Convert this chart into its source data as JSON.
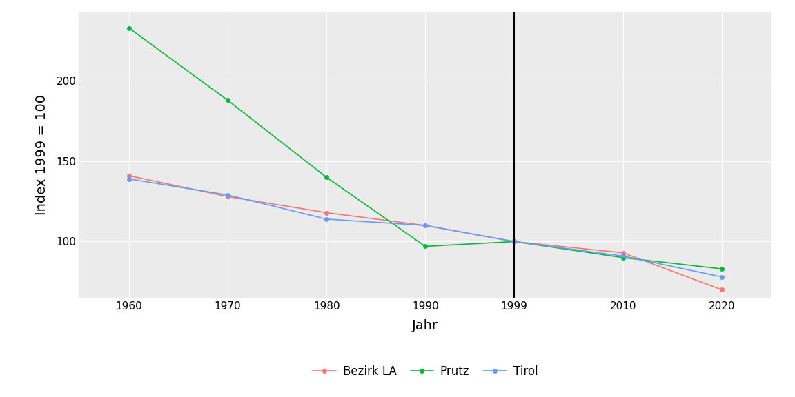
{
  "years": [
    1960,
    1970,
    1980,
    1990,
    1999,
    2010,
    2020
  ],
  "bezirk_la": [
    141,
    128,
    118,
    110,
    100,
    93,
    70
  ],
  "prutz": [
    233,
    188,
    140,
    97,
    100,
    90,
    83
  ],
  "tirol": [
    139,
    129,
    114,
    110,
    100,
    91,
    78
  ],
  "bezirk_la_color": "#F8766D",
  "prutz_color": "#00BA38",
  "tirol_color": "#619CFF",
  "xlabel": "Jahr",
  "ylabel": "Index 1999 = 100",
  "ylim": [
    65,
    243
  ],
  "xlim": [
    1955,
    2025
  ],
  "vline_x": 1999,
  "yticks": [
    100,
    150,
    200
  ],
  "xticks": [
    1960,
    1970,
    1980,
    1990,
    1999,
    2010,
    2020
  ],
  "legend_labels": [
    "Bezirk LA",
    "Prutz",
    "Tirol"
  ],
  "background_color": "#ffffff",
  "panel_background": "#ebebeb",
  "grid_color": "#ffffff",
  "marker_size": 4,
  "linewidth": 1.2
}
